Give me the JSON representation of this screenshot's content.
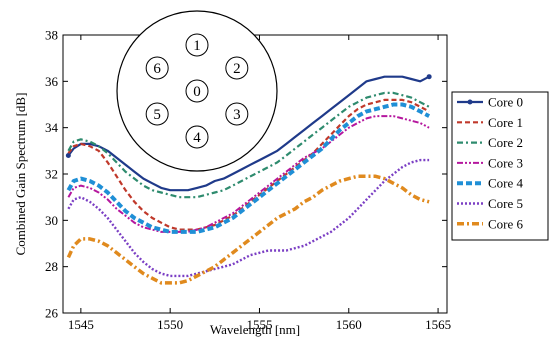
{
  "chart_data": {
    "type": "line",
    "title": "",
    "xlabel": "Wavelength [nm]",
    "ylabel": "Combined Gain Spectrum [dB]",
    "xlim": [
      1544,
      1565.5
    ],
    "ylim": [
      26,
      38
    ],
    "xticks": [
      1545,
      1550,
      1555,
      1560,
      1565
    ],
    "yticks": [
      26,
      28,
      30,
      32,
      34,
      36,
      38
    ],
    "grid": false,
    "legend_position": "right",
    "series": [
      {
        "name": "Core 0",
        "color": "#1f3a8a",
        "style": "solid-marker",
        "x": [
          1544.3,
          1544.6,
          1545,
          1545.5,
          1546,
          1546.5,
          1547,
          1547.5,
          1548,
          1548.5,
          1549,
          1549.5,
          1550,
          1550.5,
          1551,
          1551.5,
          1552,
          1552.5,
          1553,
          1553.5,
          1554,
          1554.5,
          1555,
          1555.5,
          1556,
          1556.5,
          1557,
          1557.5,
          1558,
          1558.5,
          1559,
          1559.5,
          1560,
          1560.5,
          1561,
          1561.5,
          1562,
          1562.5,
          1563,
          1563.5,
          1564,
          1564.5
        ],
        "y": [
          32.8,
          33.1,
          33.3,
          33.3,
          33.2,
          33.0,
          32.7,
          32.4,
          32.1,
          31.8,
          31.6,
          31.4,
          31.3,
          31.3,
          31.3,
          31.4,
          31.5,
          31.7,
          31.8,
          32.0,
          32.2,
          32.4,
          32.6,
          32.8,
          33.0,
          33.3,
          33.6,
          33.9,
          34.2,
          34.5,
          34.8,
          35.1,
          35.4,
          35.7,
          36.0,
          36.1,
          36.2,
          36.2,
          36.2,
          36.1,
          36.0,
          36.2
        ]
      },
      {
        "name": "Core 1",
        "color": "#c0392b",
        "style": "dash",
        "x": [
          1544.3,
          1544.6,
          1545,
          1545.5,
          1546,
          1546.5,
          1547,
          1547.5,
          1548,
          1548.5,
          1549,
          1549.5,
          1550,
          1550.5,
          1551,
          1551.5,
          1552,
          1552.5,
          1553,
          1553.5,
          1554,
          1554.5,
          1555,
          1555.5,
          1556,
          1556.5,
          1557,
          1557.5,
          1558,
          1558.5,
          1559,
          1559.5,
          1560,
          1560.5,
          1561,
          1561.5,
          1562,
          1562.5,
          1563,
          1563.5,
          1564,
          1564.5
        ],
        "y": [
          32.9,
          33.2,
          33.3,
          33.2,
          33.0,
          32.5,
          31.9,
          31.3,
          30.8,
          30.4,
          30.1,
          29.9,
          29.7,
          29.6,
          29.6,
          29.6,
          29.7,
          29.8,
          30.0,
          30.2,
          30.5,
          30.8,
          31.1,
          31.4,
          31.7,
          32.0,
          32.3,
          32.6,
          32.9,
          33.3,
          33.7,
          34.1,
          34.5,
          34.8,
          35.0,
          35.1,
          35.2,
          35.2,
          35.2,
          35.1,
          34.9,
          34.7
        ]
      },
      {
        "name": "Core 2",
        "color": "#2e8b6e",
        "style": "dash-dot",
        "x": [
          1544.3,
          1544.6,
          1545,
          1545.5,
          1546,
          1546.5,
          1547,
          1547.5,
          1548,
          1548.5,
          1549,
          1549.5,
          1550,
          1550.5,
          1551,
          1551.5,
          1552,
          1552.5,
          1553,
          1553.5,
          1554,
          1554.5,
          1555,
          1555.5,
          1556,
          1556.5,
          1557,
          1557.5,
          1558,
          1558.5,
          1559,
          1559.5,
          1560,
          1560.5,
          1561,
          1561.5,
          1562,
          1562.5,
          1563,
          1563.5,
          1564,
          1564.5
        ],
        "y": [
          33.0,
          33.4,
          33.5,
          33.4,
          33.2,
          32.9,
          32.5,
          32.1,
          31.8,
          31.5,
          31.3,
          31.2,
          31.1,
          31.0,
          31.0,
          31.0,
          31.1,
          31.2,
          31.3,
          31.5,
          31.7,
          31.9,
          32.1,
          32.3,
          32.5,
          32.8,
          33.1,
          33.4,
          33.7,
          34.0,
          34.3,
          34.6,
          34.9,
          35.1,
          35.3,
          35.4,
          35.5,
          35.5,
          35.4,
          35.3,
          35.1,
          34.9
        ]
      },
      {
        "name": "Core 3",
        "color": "#b5179e",
        "style": "dash-dot-dot",
        "x": [
          1544.3,
          1544.6,
          1545,
          1545.5,
          1546,
          1546.5,
          1547,
          1547.5,
          1548,
          1548.5,
          1549,
          1549.5,
          1550,
          1550.5,
          1551,
          1551.5,
          1552,
          1552.5,
          1553,
          1553.5,
          1554,
          1554.5,
          1555,
          1555.5,
          1556,
          1556.5,
          1557,
          1557.5,
          1558,
          1558.5,
          1559,
          1559.5,
          1560,
          1560.5,
          1561,
          1561.5,
          1562,
          1562.5,
          1563,
          1563.5,
          1564,
          1564.5
        ],
        "y": [
          31.0,
          31.4,
          31.5,
          31.4,
          31.2,
          30.9,
          30.5,
          30.2,
          29.9,
          29.7,
          29.6,
          29.5,
          29.5,
          29.5,
          29.5,
          29.6,
          29.7,
          29.9,
          30.1,
          30.3,
          30.6,
          30.9,
          31.2,
          31.5,
          31.8,
          32.1,
          32.4,
          32.7,
          32.9,
          33.1,
          33.4,
          33.7,
          34.0,
          34.2,
          34.4,
          34.5,
          34.5,
          34.5,
          34.4,
          34.3,
          34.2,
          34.0
        ]
      },
      {
        "name": "Core 4",
        "color": "#1f8fd6",
        "style": "heavy-dash",
        "x": [
          1544.3,
          1544.6,
          1545,
          1545.5,
          1546,
          1546.5,
          1547,
          1547.5,
          1548,
          1548.5,
          1549,
          1549.5,
          1550,
          1550.5,
          1551,
          1551.5,
          1552,
          1552.5,
          1553,
          1553.5,
          1554,
          1554.5,
          1555,
          1555.5,
          1556,
          1556.5,
          1557,
          1557.5,
          1558,
          1558.5,
          1559,
          1559.5,
          1560,
          1560.5,
          1561,
          1561.5,
          1562,
          1562.5,
          1563,
          1563.5,
          1564,
          1564.5
        ],
        "y": [
          31.3,
          31.7,
          31.8,
          31.7,
          31.5,
          31.2,
          30.8,
          30.4,
          30.1,
          29.9,
          29.7,
          29.6,
          29.5,
          29.5,
          29.5,
          29.5,
          29.6,
          29.7,
          29.9,
          30.1,
          30.4,
          30.7,
          31.0,
          31.3,
          31.6,
          31.9,
          32.2,
          32.5,
          32.8,
          33.1,
          33.5,
          33.9,
          34.2,
          34.5,
          34.7,
          34.8,
          34.9,
          35.0,
          35.0,
          34.9,
          34.7,
          34.5
        ]
      },
      {
        "name": "Core 5",
        "color": "#7b3fc4",
        "style": "dot",
        "x": [
          1544.3,
          1544.6,
          1545,
          1545.5,
          1546,
          1546.5,
          1547,
          1547.5,
          1548,
          1548.5,
          1549,
          1549.5,
          1550,
          1550.5,
          1551,
          1551.5,
          1552,
          1552.5,
          1553,
          1553.5,
          1554,
          1554.5,
          1555,
          1555.5,
          1556,
          1556.5,
          1557,
          1557.5,
          1558,
          1558.5,
          1559,
          1559.5,
          1560,
          1560.5,
          1561,
          1561.5,
          1562,
          1562.5,
          1563,
          1563.5,
          1564,
          1564.5
        ],
        "y": [
          30.5,
          30.9,
          31.0,
          30.8,
          30.5,
          30.1,
          29.6,
          29.1,
          28.6,
          28.2,
          27.9,
          27.7,
          27.6,
          27.6,
          27.6,
          27.7,
          27.8,
          27.9,
          28.0,
          28.1,
          28.3,
          28.5,
          28.6,
          28.7,
          28.7,
          28.7,
          28.8,
          28.9,
          29.1,
          29.3,
          29.5,
          29.8,
          30.1,
          30.5,
          30.9,
          31.3,
          31.7,
          32.0,
          32.3,
          32.5,
          32.6,
          32.6
        ]
      },
      {
        "name": "Core 6",
        "color": "#e08a1e",
        "style": "heavy-dash-dot",
        "x": [
          1544.3,
          1544.6,
          1545,
          1545.5,
          1546,
          1546.5,
          1547,
          1547.5,
          1548,
          1548.5,
          1549,
          1549.5,
          1550,
          1550.5,
          1551,
          1551.5,
          1552,
          1552.5,
          1553,
          1553.5,
          1554,
          1554.5,
          1555,
          1555.5,
          1556,
          1556.5,
          1557,
          1557.5,
          1558,
          1558.5,
          1559,
          1559.5,
          1560,
          1560.5,
          1561,
          1561.5,
          1562,
          1562.5,
          1563,
          1563.5,
          1564,
          1564.5
        ],
        "y": [
          28.4,
          28.9,
          29.2,
          29.2,
          29.1,
          28.9,
          28.6,
          28.3,
          28.0,
          27.7,
          27.5,
          27.3,
          27.3,
          27.3,
          27.4,
          27.6,
          27.8,
          28.0,
          28.3,
          28.6,
          28.9,
          29.2,
          29.5,
          29.8,
          30.1,
          30.3,
          30.5,
          30.8,
          31.0,
          31.3,
          31.5,
          31.7,
          31.8,
          31.9,
          31.9,
          31.9,
          31.8,
          31.6,
          31.4,
          31.1,
          30.9,
          30.8
        ]
      }
    ]
  },
  "inset": {
    "cores": [
      {
        "label": "0"
      },
      {
        "label": "1"
      },
      {
        "label": "2"
      },
      {
        "label": "3"
      },
      {
        "label": "4"
      },
      {
        "label": "5"
      },
      {
        "label": "6"
      }
    ]
  }
}
